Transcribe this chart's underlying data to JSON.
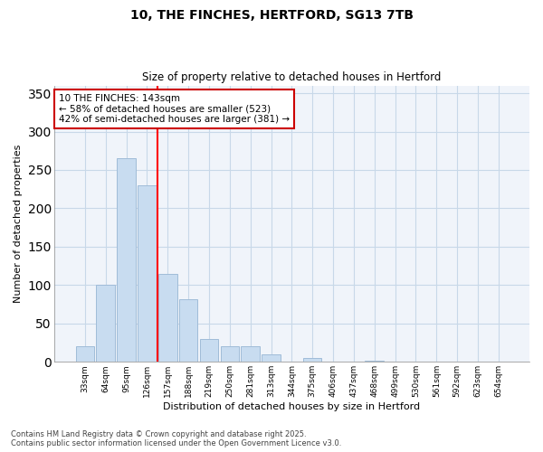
{
  "title1": "10, THE FINCHES, HERTFORD, SG13 7TB",
  "title2": "Size of property relative to detached houses in Hertford",
  "xlabel": "Distribution of detached houses by size in Hertford",
  "ylabel": "Number of detached properties",
  "categories": [
    "33sqm",
    "64sqm",
    "95sqm",
    "126sqm",
    "157sqm",
    "188sqm",
    "219sqm",
    "250sqm",
    "281sqm",
    "313sqm",
    "344sqm",
    "375sqm",
    "406sqm",
    "437sqm",
    "468sqm",
    "499sqm",
    "530sqm",
    "561sqm",
    "592sqm",
    "623sqm",
    "654sqm"
  ],
  "values": [
    20,
    100,
    265,
    230,
    115,
    82,
    30,
    20,
    20,
    10,
    0,
    5,
    0,
    0,
    2,
    0,
    0,
    0,
    0,
    0,
    0
  ],
  "bar_color": "#c8dcf0",
  "bar_edge_color": "#a0bcd8",
  "grid_color": "#c8d8e8",
  "bg_color": "#ffffff",
  "plot_bg_color": "#f0f4fa",
  "red_line_x": 3.5,
  "annotation_text": "10 THE FINCHES: 143sqm\n← 58% of detached houses are smaller (523)\n42% of semi-detached houses are larger (381) →",
  "annotation_box_color": "#ffffff",
  "annotation_box_edge": "#cc0000",
  "ylim": [
    0,
    360
  ],
  "yticks": [
    0,
    50,
    100,
    150,
    200,
    250,
    300,
    350
  ],
  "footer1": "Contains HM Land Registry data © Crown copyright and database right 2025.",
  "footer2": "Contains public sector information licensed under the Open Government Licence v3.0."
}
